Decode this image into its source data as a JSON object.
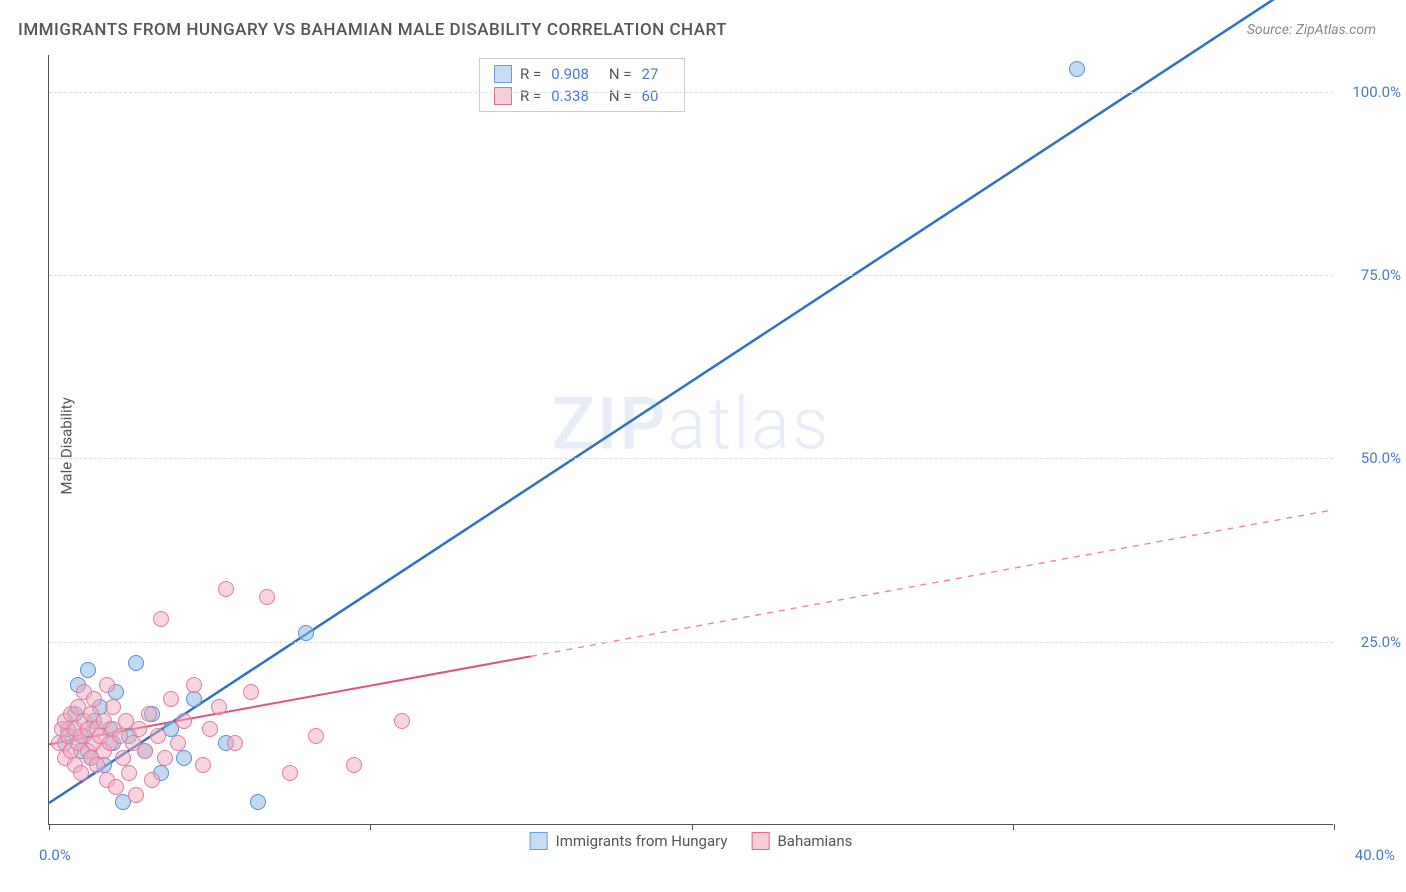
{
  "title": "IMMIGRANTS FROM HUNGARY VS BAHAMIAN MALE DISABILITY CORRELATION CHART",
  "source": "Source: ZipAtlas.com",
  "y_axis_label": "Male Disability",
  "watermark": {
    "zip": "ZIP",
    "atlas": "atlas"
  },
  "chart": {
    "type": "scatter",
    "xlim": [
      0,
      40
    ],
    "ylim": [
      0,
      105
    ],
    "x_ticks_minor": [
      0,
      10,
      20,
      30,
      40
    ],
    "x_tick_labels": {
      "min": "0.0%",
      "max": "40.0%"
    },
    "y_gridlines": [
      25,
      50,
      75,
      100
    ],
    "y_tick_labels": [
      "25.0%",
      "50.0%",
      "75.0%",
      "100.0%"
    ],
    "background_color": "#ffffff",
    "grid_color": "#dddddd",
    "axis_color": "#555555",
    "series": [
      {
        "name": "Immigrants from Hungary",
        "key": "blue",
        "point_fill": "rgba(144,186,230,0.55)",
        "point_stroke": "#5a93d0",
        "point_radius": 8,
        "regression": {
          "R": "0.908",
          "N": "27",
          "line_color": "#2f6fc4",
          "line_width": 2.5,
          "solid_from_x": 0,
          "solid_to_x": 40,
          "y_at_x0": 3,
          "y_at_x40": 118
        },
        "points": [
          {
            "x": 0.5,
            "y": 11
          },
          {
            "x": 0.6,
            "y": 13
          },
          {
            "x": 0.8,
            "y": 15
          },
          {
            "x": 0.9,
            "y": 19
          },
          {
            "x": 1.0,
            "y": 10
          },
          {
            "x": 1.1,
            "y": 12
          },
          {
            "x": 1.2,
            "y": 21
          },
          {
            "x": 1.3,
            "y": 9
          },
          {
            "x": 1.4,
            "y": 14
          },
          {
            "x": 1.6,
            "y": 16
          },
          {
            "x": 1.7,
            "y": 8
          },
          {
            "x": 1.9,
            "y": 13
          },
          {
            "x": 2.0,
            "y": 11
          },
          {
            "x": 2.1,
            "y": 18
          },
          {
            "x": 2.3,
            "y": 3
          },
          {
            "x": 2.5,
            "y": 12
          },
          {
            "x": 2.7,
            "y": 22
          },
          {
            "x": 3.0,
            "y": 10
          },
          {
            "x": 3.2,
            "y": 15
          },
          {
            "x": 3.5,
            "y": 7
          },
          {
            "x": 3.8,
            "y": 13
          },
          {
            "x": 4.2,
            "y": 9
          },
          {
            "x": 4.5,
            "y": 17
          },
          {
            "x": 5.5,
            "y": 11
          },
          {
            "x": 6.5,
            "y": 3
          },
          {
            "x": 8.0,
            "y": 26
          },
          {
            "x": 32.0,
            "y": 103
          }
        ]
      },
      {
        "name": "Bahamians",
        "key": "pink",
        "point_fill": "rgba(240,170,190,0.50)",
        "point_stroke": "#e07ca0",
        "point_radius": 8,
        "regression": {
          "R": "0.338",
          "N": "60",
          "line_color": "#e5517b",
          "line_width": 2,
          "solid_from_x": 0,
          "solid_to_x": 15,
          "dashed_to_x": 40,
          "y_at_x0": 11,
          "y_at_x40": 43
        },
        "points": [
          {
            "x": 0.3,
            "y": 11
          },
          {
            "x": 0.4,
            "y": 13
          },
          {
            "x": 0.5,
            "y": 9
          },
          {
            "x": 0.5,
            "y": 14
          },
          {
            "x": 0.6,
            "y": 12
          },
          {
            "x": 0.7,
            "y": 10
          },
          {
            "x": 0.7,
            "y": 15
          },
          {
            "x": 0.8,
            "y": 8
          },
          {
            "x": 0.8,
            "y": 13
          },
          {
            "x": 0.9,
            "y": 11
          },
          {
            "x": 0.9,
            "y": 16
          },
          {
            "x": 1.0,
            "y": 7
          },
          {
            "x": 1.0,
            "y": 12
          },
          {
            "x": 1.1,
            "y": 14
          },
          {
            "x": 1.1,
            "y": 18
          },
          {
            "x": 1.2,
            "y": 10
          },
          {
            "x": 1.2,
            "y": 13
          },
          {
            "x": 1.3,
            "y": 9
          },
          {
            "x": 1.3,
            "y": 15
          },
          {
            "x": 1.4,
            "y": 11
          },
          {
            "x": 1.4,
            "y": 17
          },
          {
            "x": 1.5,
            "y": 8
          },
          {
            "x": 1.5,
            "y": 13
          },
          {
            "x": 1.6,
            "y": 12
          },
          {
            "x": 1.7,
            "y": 10
          },
          {
            "x": 1.7,
            "y": 14
          },
          {
            "x": 1.8,
            "y": 6
          },
          {
            "x": 1.8,
            "y": 19
          },
          {
            "x": 1.9,
            "y": 11
          },
          {
            "x": 2.0,
            "y": 13
          },
          {
            "x": 2.0,
            "y": 16
          },
          {
            "x": 2.1,
            "y": 5
          },
          {
            "x": 2.2,
            "y": 12
          },
          {
            "x": 2.3,
            "y": 9
          },
          {
            "x": 2.4,
            "y": 14
          },
          {
            "x": 2.5,
            "y": 7
          },
          {
            "x": 2.6,
            "y": 11
          },
          {
            "x": 2.7,
            "y": 4
          },
          {
            "x": 2.8,
            "y": 13
          },
          {
            "x": 3.0,
            "y": 10
          },
          {
            "x": 3.1,
            "y": 15
          },
          {
            "x": 3.2,
            "y": 6
          },
          {
            "x": 3.4,
            "y": 12
          },
          {
            "x": 3.5,
            "y": 28
          },
          {
            "x": 3.6,
            "y": 9
          },
          {
            "x": 3.8,
            "y": 17
          },
          {
            "x": 4.0,
            "y": 11
          },
          {
            "x": 4.2,
            "y": 14
          },
          {
            "x": 4.5,
            "y": 19
          },
          {
            "x": 4.8,
            "y": 8
          },
          {
            "x": 5.0,
            "y": 13
          },
          {
            "x": 5.3,
            "y": 16
          },
          {
            "x": 5.5,
            "y": 32
          },
          {
            "x": 5.8,
            "y": 11
          },
          {
            "x": 6.3,
            "y": 18
          },
          {
            "x": 6.8,
            "y": 31
          },
          {
            "x": 7.5,
            "y": 7
          },
          {
            "x": 8.3,
            "y": 12
          },
          {
            "x": 9.5,
            "y": 8
          },
          {
            "x": 11.0,
            "y": 14
          }
        ]
      }
    ]
  },
  "legend_bottom": [
    {
      "swatch": "blue",
      "label": "Immigrants from Hungary"
    },
    {
      "swatch": "pink",
      "label": "Bahamians"
    }
  ]
}
